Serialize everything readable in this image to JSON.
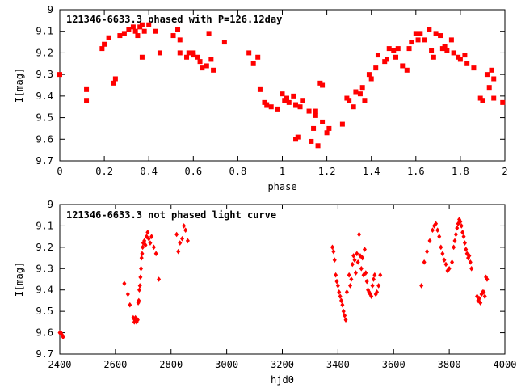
{
  "chart_data": [
    {
      "type": "scatter",
      "title": "121346-6633.3 phased with P=126.12day",
      "xlabel": "phase",
      "ylabel": "I[mag]",
      "xlim": [
        0,
        2
      ],
      "ylim": [
        9.7,
        9
      ],
      "y_inverted": true,
      "grid": false,
      "x_ticks": [
        "0",
        "0.2",
        "0.4",
        "0.6",
        "0.8",
        "1",
        "1.2",
        "1.4",
        "1.6",
        "1.8",
        "2"
      ],
      "y_ticks": [
        "9",
        "9.1",
        "9.2",
        "9.3",
        "9.4",
        "9.5",
        "9.6",
        "9.7"
      ],
      "marker_color": "#ff0000",
      "marker": "square",
      "series": [
        {
          "x": [
            0.0,
            0.12,
            0.12,
            0.19,
            0.2,
            0.22,
            0.24,
            0.25,
            0.27,
            0.29,
            0.31,
            0.33,
            0.34,
            0.35,
            0.36,
            0.37,
            0.37,
            0.38,
            0.4,
            0.43,
            0.45,
            0.51,
            0.53,
            0.54,
            0.54,
            0.57,
            0.58,
            0.6,
            0.6,
            0.62,
            0.63,
            0.64,
            0.66,
            0.67,
            0.68,
            0.69,
            0.74,
            0.85,
            0.87,
            0.89,
            0.9,
            0.92,
            0.93,
            0.95,
            0.98,
            1.0,
            1.01,
            1.02,
            1.03,
            1.05,
            1.06,
            1.06,
            1.07,
            1.08,
            1.09,
            1.12,
            1.13,
            1.14,
            1.15,
            1.15,
            1.16,
            1.17,
            1.18,
            1.18,
            1.2,
            1.21,
            1.27,
            1.29,
            1.3,
            1.32,
            1.33,
            1.35,
            1.36,
            1.37,
            1.39,
            1.4,
            1.42,
            1.43,
            1.46,
            1.47,
            1.48,
            1.5,
            1.51,
            1.52,
            1.54,
            1.56,
            1.57,
            1.58,
            1.6,
            1.61,
            1.62,
            1.64,
            1.66,
            1.67,
            1.68,
            1.69,
            1.71,
            1.72,
            1.73,
            1.74,
            1.76,
            1.77,
            1.79,
            1.8,
            1.82,
            1.83,
            1.86,
            1.89,
            1.9,
            1.92,
            1.93,
            1.94,
            1.95,
            1.95,
            1.99
          ],
          "y": [
            9.3,
            9.37,
            9.42,
            9.18,
            9.16,
            9.13,
            9.34,
            9.32,
            9.12,
            9.11,
            9.09,
            9.08,
            9.1,
            9.12,
            9.08,
            9.07,
            9.22,
            9.1,
            9.07,
            9.1,
            9.2,
            9.12,
            9.09,
            9.14,
            9.2,
            9.22,
            9.2,
            9.21,
            9.2,
            9.22,
            9.24,
            9.27,
            9.26,
            9.11,
            9.23,
            9.28,
            9.15,
            9.2,
            9.25,
            9.22,
            9.37,
            9.43,
            9.44,
            9.45,
            9.46,
            9.39,
            9.42,
            9.41,
            9.43,
            9.4,
            9.44,
            9.6,
            9.59,
            9.45,
            9.42,
            9.47,
            9.61,
            9.55,
            9.49,
            9.47,
            9.63,
            9.34,
            9.52,
            9.35,
            9.57,
            9.55,
            9.53,
            9.41,
            9.42,
            9.45,
            9.38,
            9.39,
            9.36,
            9.42,
            9.3,
            9.32,
            9.27,
            9.21,
            9.24,
            9.23,
            9.18,
            9.19,
            9.22,
            9.18,
            9.26,
            9.28,
            9.18,
            9.15,
            9.11,
            9.14,
            9.11,
            9.14,
            9.09,
            9.19,
            9.22,
            9.11,
            9.12,
            9.18,
            9.17,
            9.19,
            9.14,
            9.2,
            9.22,
            9.23,
            9.21,
            9.25,
            9.27,
            9.41,
            9.42,
            9.3,
            9.36,
            9.28,
            9.32,
            9.41,
            9.43
          ]
        }
      ]
    },
    {
      "type": "scatter",
      "title": "121346-6633.3 not phased light curve",
      "xlabel": "hjd0",
      "ylabel": "I[mag]",
      "xlim": [
        2400,
        4000
      ],
      "ylim": [
        9.7,
        9
      ],
      "y_inverted": true,
      "grid": false,
      "x_ticks": [
        "2400",
        "2600",
        "2800",
        "3000",
        "3200",
        "3400",
        "3600",
        "3800",
        "4000"
      ],
      "y_ticks": [
        "9",
        "9.1",
        "9.2",
        "9.3",
        "9.4",
        "9.5",
        "9.6",
        "9.7"
      ],
      "marker_color": "#ff0000",
      "marker": "diamond",
      "series": [
        {
          "x": [
            2400,
            2404,
            2408,
            2412,
            2632,
            2645,
            2652,
            2664,
            2668,
            2670,
            2672,
            2676,
            2680,
            2682,
            2684,
            2686,
            2688,
            2690,
            2692,
            2694,
            2696,
            2698,
            2700,
            2704,
            2708,
            2712,
            2716,
            2720,
            2725,
            2730,
            2738,
            2746,
            2756,
            2820,
            2826,
            2832,
            2840,
            2846,
            2852,
            2860,
            3380,
            3384,
            3388,
            3392,
            3396,
            3400,
            3404,
            3408,
            3412,
            3416,
            3420,
            3424,
            3428,
            3432,
            3440,
            3444,
            3448,
            3452,
            3456,
            3460,
            3464,
            3468,
            3472,
            3476,
            3480,
            3484,
            3488,
            3492,
            3496,
            3500,
            3504,
            3508,
            3512,
            3516,
            3520,
            3524,
            3528,
            3532,
            3536,
            3540,
            3546,
            3552,
            3700,
            3710,
            3720,
            3730,
            3740,
            3746,
            3752,
            3758,
            3764,
            3770,
            3776,
            3782,
            3788,
            3794,
            3800,
            3810,
            3816,
            3820,
            3824,
            3828,
            3832,
            3836,
            3840,
            3844,
            3848,
            3852,
            3856,
            3860,
            3864,
            3868,
            3872,
            3876,
            3880,
            3900,
            3904,
            3908,
            3912,
            3916,
            3920,
            3924,
            3928,
            3932,
            3936
          ],
          "y": [
            9.6,
            9.6,
            9.61,
            9.62,
            9.37,
            9.42,
            9.47,
            9.53,
            9.55,
            9.54,
            9.53,
            9.55,
            9.54,
            9.46,
            9.45,
            9.4,
            9.38,
            9.34,
            9.3,
            9.25,
            9.23,
            9.2,
            9.18,
            9.17,
            9.19,
            9.15,
            9.13,
            9.16,
            9.18,
            9.15,
            9.2,
            9.23,
            9.35,
            9.14,
            9.22,
            9.18,
            9.16,
            9.1,
            9.12,
            9.17,
            9.2,
            9.22,
            9.26,
            9.33,
            9.36,
            9.38,
            9.41,
            9.43,
            9.45,
            9.47,
            9.5,
            9.52,
            9.54,
            9.41,
            9.33,
            9.38,
            9.35,
            9.28,
            9.24,
            9.26,
            9.32,
            9.23,
            9.27,
            9.14,
            9.24,
            9.3,
            9.25,
            9.33,
            9.21,
            9.32,
            9.36,
            9.4,
            9.41,
            9.42,
            9.43,
            9.38,
            9.35,
            9.33,
            9.42,
            9.41,
            9.38,
            9.33,
            9.38,
            9.27,
            9.22,
            9.17,
            9.12,
            9.1,
            9.09,
            9.12,
            9.15,
            9.2,
            9.23,
            9.26,
            9.28,
            9.31,
            9.3,
            9.27,
            9.2,
            9.17,
            9.14,
            9.11,
            9.09,
            9.07,
            9.08,
            9.1,
            9.13,
            9.15,
            9.18,
            9.21,
            9.23,
            9.25,
            9.24,
            9.27,
            9.3,
            9.43,
            9.45,
            9.44,
            9.46,
            9.42,
            9.41,
            9.41,
            9.43,
            9.34,
            9.35
          ]
        }
      ]
    }
  ]
}
